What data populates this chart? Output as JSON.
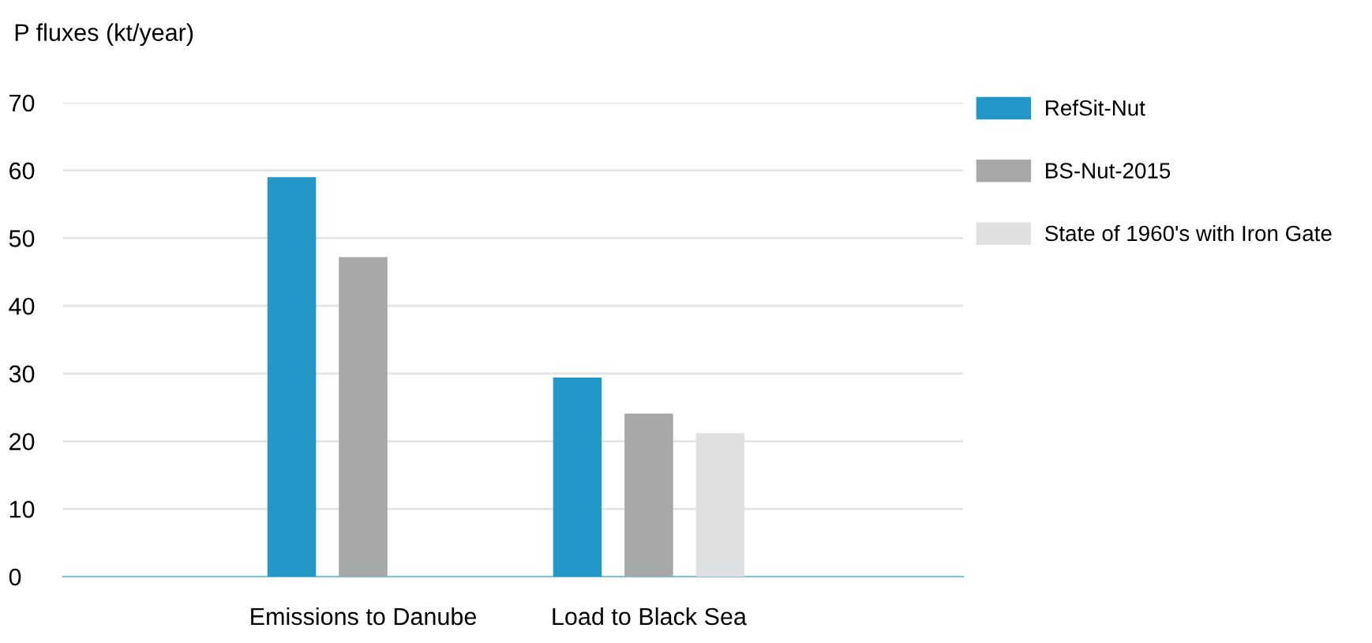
{
  "chart_data": {
    "type": "bar",
    "ylabel": "P fluxes (kt/year)",
    "categories": [
      "Emissions to Danube",
      "Load to Black Sea"
    ],
    "series": [
      {
        "name": "RefSit-Nut",
        "color": "#2397c8",
        "values": [
          59,
          29.4
        ]
      },
      {
        "name": "BS-Nut-2015",
        "color": "#a7a9a9",
        "values": [
          47.2,
          24.1
        ]
      },
      {
        "name": "State of 1960's with Iron Gate",
        "color": "#dfe0e1",
        "values": [
          null,
          21.2
        ]
      }
    ],
    "ylim": [
      0,
      70
    ],
    "yticks": [
      0,
      10,
      20,
      30,
      40,
      50,
      60,
      70
    ],
    "grid": "y",
    "legend": "right"
  }
}
